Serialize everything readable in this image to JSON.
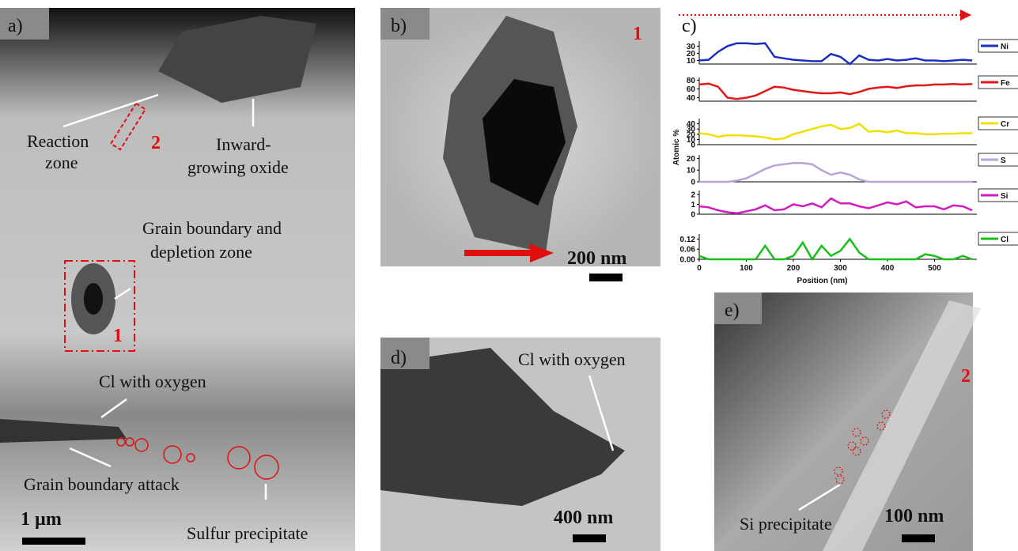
{
  "panels": {
    "a": {
      "label": "a)",
      "annotations": [
        "Reaction",
        "zone",
        "Inward-",
        "growing oxide",
        "Grain boundary and",
        "depletion zone",
        "Cl with oxygen",
        "Grain boundary attack",
        "Sulfur precipitate"
      ],
      "box_labels": [
        "1",
        "2"
      ],
      "scale": "1 µm"
    },
    "b": {
      "label": "b)",
      "marker": "1",
      "scale": "200 nm"
    },
    "c": {
      "label": "c)"
    },
    "d": {
      "label": "d)",
      "annotation": "Cl with oxygen",
      "scale": "400 nm"
    },
    "e": {
      "label": "e)",
      "marker": "2",
      "annotation": "Si precipitate",
      "scale": "100 nm"
    }
  },
  "chart_data": [
    {
      "type": "line",
      "x": [
        0,
        20,
        40,
        60,
        80,
        100,
        120,
        140,
        160,
        180,
        200,
        220,
        240,
        260,
        280,
        300,
        320,
        340,
        360,
        380,
        400,
        420,
        440,
        460,
        480,
        500,
        520,
        540,
        560,
        580
      ],
      "xlim": [
        0,
        590
      ],
      "ylim": [
        5,
        37
      ],
      "yticks": [
        10,
        20,
        30
      ],
      "series": [
        {
          "name": "Ni",
          "color": "#1a2fc0",
          "values": [
            10,
            11,
            22,
            30,
            34,
            34,
            33,
            34,
            15,
            13,
            11,
            10,
            9,
            9,
            19,
            15,
            5,
            17,
            11,
            10,
            12,
            10,
            11,
            13,
            10,
            10,
            9,
            10,
            11,
            10
          ]
        }
      ]
    },
    {
      "type": "line",
      "x": [
        0,
        20,
        40,
        60,
        80,
        100,
        120,
        140,
        160,
        180,
        200,
        220,
        240,
        260,
        280,
        300,
        320,
        340,
        360,
        380,
        400,
        420,
        440,
        460,
        480,
        500,
        520,
        540,
        560,
        580
      ],
      "xlim": [
        0,
        590
      ],
      "ylim": [
        32,
        86
      ],
      "yticks": [
        40,
        60,
        80
      ],
      "series": [
        {
          "name": "Fe",
          "color": "#e01818",
          "values": [
            70,
            72,
            65,
            40,
            37,
            40,
            45,
            55,
            65,
            63,
            58,
            55,
            52,
            50,
            50,
            52,
            48,
            53,
            60,
            63,
            65,
            62,
            66,
            68,
            68,
            70,
            70,
            71,
            70,
            71
          ]
        }
      ]
    },
    {
      "type": "line",
      "x": [
        0,
        20,
        40,
        60,
        80,
        100,
        120,
        140,
        160,
        180,
        200,
        220,
        240,
        260,
        280,
        300,
        320,
        340,
        360,
        380,
        400,
        420,
        440,
        460,
        480,
        500,
        520,
        540,
        560,
        580
      ],
      "xlim": [
        0,
        590
      ],
      "ylim": [
        0,
        50
      ],
      "yticks": [
        0,
        10,
        20,
        30,
        40
      ],
      "ylabel": "Atomic %",
      "series": [
        {
          "name": "Cr",
          "color": "#f0e000",
          "values": [
            22,
            20,
            15,
            18,
            18,
            17,
            16,
            14,
            10,
            12,
            20,
            25,
            30,
            35,
            38,
            30,
            32,
            40,
            25,
            26,
            24,
            27,
            22,
            22,
            20,
            20,
            21,
            21,
            22,
            22
          ]
        }
      ]
    },
    {
      "type": "line",
      "x": [
        0,
        20,
        40,
        60,
        80,
        100,
        120,
        140,
        160,
        180,
        200,
        220,
        240,
        260,
        280,
        300,
        320,
        340,
        360,
        380,
        400,
        420,
        440,
        460,
        480,
        500,
        520,
        540,
        560,
        580
      ],
      "xlim": [
        0,
        590
      ],
      "ylim": [
        0,
        23
      ],
      "yticks": [
        0,
        10,
        20
      ],
      "series": [
        {
          "name": "S",
          "color": "#b9a3d6",
          "values": [
            0,
            0,
            0,
            0,
            1,
            3,
            7,
            11,
            14,
            15,
            16,
            16,
            15,
            10,
            6,
            8,
            6,
            2,
            0,
            0,
            0,
            0,
            0,
            0,
            0,
            0,
            0,
            0,
            0,
            0
          ]
        }
      ]
    },
    {
      "type": "line",
      "x": [
        0,
        20,
        40,
        60,
        80,
        100,
        120,
        140,
        160,
        180,
        200,
        220,
        240,
        260,
        280,
        300,
        320,
        340,
        360,
        380,
        400,
        420,
        440,
        460,
        480,
        500,
        520,
        540,
        560,
        580
      ],
      "xlim": [
        0,
        590
      ],
      "ylim": [
        0,
        2.4
      ],
      "yticks": [
        0,
        1,
        2
      ],
      "series": [
        {
          "name": "Si",
          "color": "#d21cc0",
          "values": [
            0.8,
            0.7,
            0.4,
            0.2,
            0.1,
            0.3,
            0.5,
            0.9,
            0.4,
            0.5,
            1.0,
            0.8,
            1.1,
            0.7,
            1.6,
            1.1,
            1.1,
            0.8,
            0.6,
            0.9,
            1.2,
            1.0,
            1.3,
            0.7,
            0.8,
            0.8,
            0.5,
            0.9,
            0.8,
            0.4
          ]
        }
      ]
    },
    {
      "type": "line",
      "x": [
        0,
        20,
        40,
        60,
        80,
        100,
        120,
        140,
        160,
        180,
        200,
        220,
        240,
        260,
        280,
        300,
        320,
        340,
        360,
        380,
        400,
        420,
        440,
        460,
        480,
        500,
        520,
        540,
        560,
        580
      ],
      "xlim": [
        0,
        590
      ],
      "ylim": [
        0,
        0.15
      ],
      "yticks": [
        {
          "value": 0,
          "label": "0.00"
        },
        0.06,
        0.12
      ],
      "xticks": [
        0,
        100,
        200,
        300,
        400,
        500
      ],
      "xlabel": "Position (nm)",
      "series": [
        {
          "name": "Cl",
          "color": "#18c018",
          "values": [
            0.02,
            0,
            0,
            0,
            0,
            0,
            0,
            0.08,
            0,
            0,
            0.02,
            0.1,
            0,
            0.08,
            0.02,
            0.05,
            0.12,
            0.04,
            0,
            0,
            0,
            0,
            0,
            0,
            0.03,
            0.02,
            0,
            0,
            0.02,
            0
          ]
        }
      ]
    }
  ]
}
